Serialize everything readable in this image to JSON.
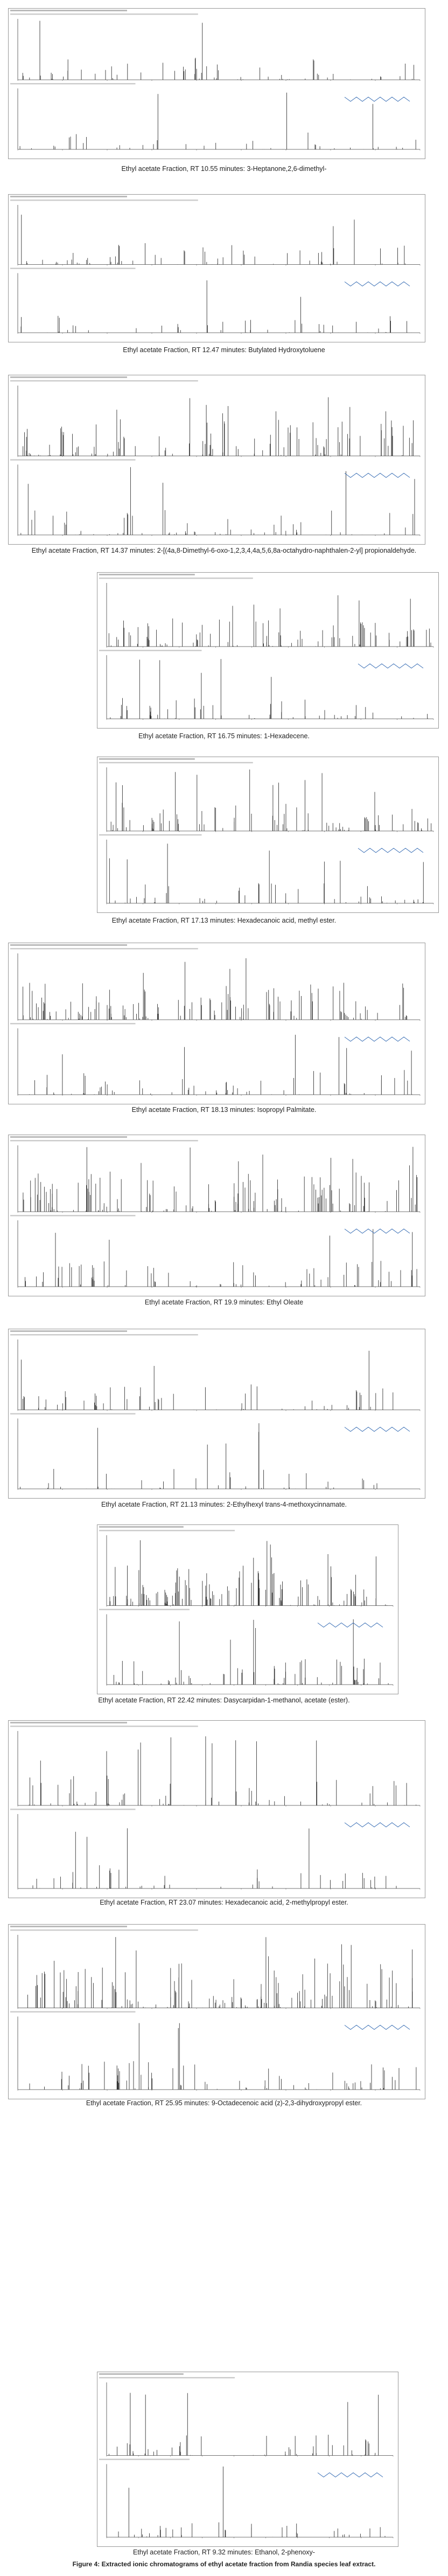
{
  "figure": {
    "panels": [
      {
        "caption": "Ethyl acetate Fraction, RT 10.55 minutes: 3-Heptanone,2,6-dimethyl-"
      },
      {
        "caption": "Ethyl acetate Fraction, RT 12.47 minutes: Butylated Hydroxytoluene"
      },
      {
        "caption": "Ethyl acetate Fraction, RT 14.37 minutes: 2-[(4a,8-Dimethyl-6-oxo-1,2,3,4,4a,5,6,8a-octahydro-naphthalen-2-yl] propionaldehyde."
      },
      {
        "caption": "Ethyl acetate Fraction, RT 16.75 minutes: 1-Hexadecene."
      },
      {
        "caption": "Ethyl acetate Fraction, RT 17.13 minutes: Hexadecanoic acid, methyl ester."
      },
      {
        "caption": "Ethyl acetate Fraction, RT 18.13 minutes: Isopropyl Palmitate."
      },
      {
        "caption": "Ethyl acetate Fraction, RT 19.9 minutes: Ethyl Oleate"
      },
      {
        "caption": "Ethyl acetate Fraction, RT 21.13 minutes: 2-Ethylhexyl trans-4-methoxycinnamate."
      },
      {
        "caption": "Ethyl acetate Fraction, RT 22.42 minutes: Dasycarpidan-1-methanol, acetate (ester)."
      },
      {
        "caption": "Ethyl acetate Fraction, RT 23.07 minutes: Hexadecanoic acid, 2-methylpropyl ester."
      },
      {
        "caption": "Ethyl acetate Fraction, RT 25.95 minutes: 9-Octadecenoic acid (z)-2,3-dihydroxypropyl ester."
      },
      {
        "caption": "Ethyl acetate Fraction, RT 9.32 minutes: Ethanol, 2-phenoxy-"
      }
    ],
    "caption": "Figure 4: Extracted ionic chromatograms of ethyl acetate fraction from Randia species leaf extract."
  }
}
